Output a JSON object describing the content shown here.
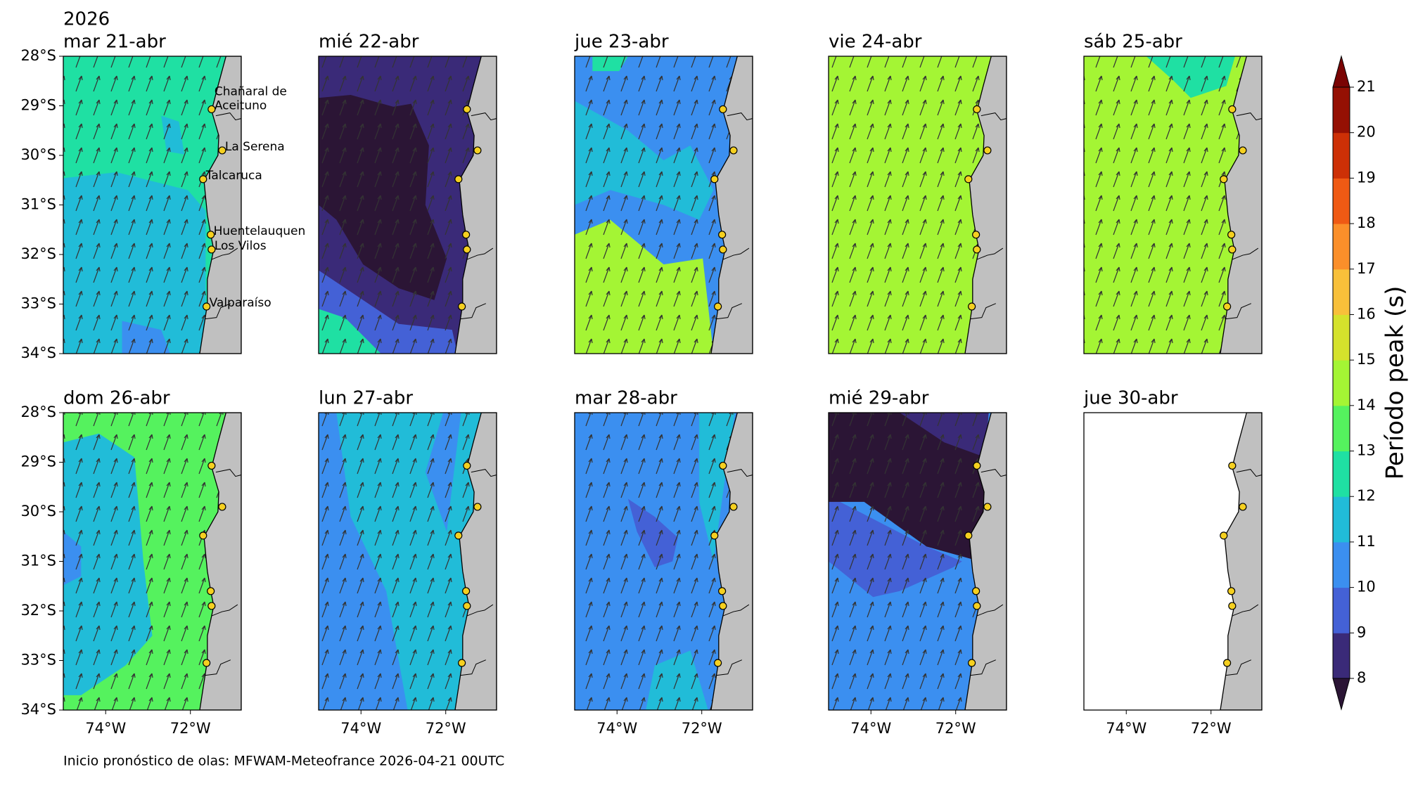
{
  "header": {
    "year": "2026"
  },
  "panels": [
    {
      "title": "mar 21-abr"
    },
    {
      "title": "mié 22-abr"
    },
    {
      "title": "jue 23-abr"
    },
    {
      "title": "vie 24-abr"
    },
    {
      "title": "sáb 25-abr"
    },
    {
      "title": "dom 26-abr"
    },
    {
      "title": "lun 27-abr"
    },
    {
      "title": "mar 28-abr"
    },
    {
      "title": "mié 29-abr"
    },
    {
      "title": "jue 30-abr"
    }
  ],
  "map": {
    "xlim": [
      -75,
      -70.8
    ],
    "ylim": [
      28,
      34
    ],
    "xticks": [
      {
        "value": -74,
        "label": "74°W"
      },
      {
        "value": -72,
        "label": "72°W"
      }
    ],
    "yticks": [
      {
        "value": 28,
        "label": "28°S"
      },
      {
        "value": 29,
        "label": "29°S"
      },
      {
        "value": 30,
        "label": "30°S"
      },
      {
        "value": 31,
        "label": "31°S"
      },
      {
        "value": 32,
        "label": "32°S"
      },
      {
        "value": 33,
        "label": "33°S"
      },
      {
        "value": 34,
        "label": "34°S"
      }
    ],
    "cities": [
      {
        "lines": [
          "Chañaral de",
          "Aceituno"
        ],
        "lon": -71.5,
        "lat": 29.07
      },
      {
        "lines": [
          "La Serena"
        ],
        "lon": -71.25,
        "lat": 29.9
      },
      {
        "lines": [
          "Talcaruca"
        ],
        "lon": -71.7,
        "lat": 30.48
      },
      {
        "lines": [
          "Huentelauquen"
        ],
        "lon": -71.52,
        "lat": 31.6
      },
      {
        "lines": [
          "Los Vilos"
        ],
        "lon": -71.5,
        "lat": 31.9
      },
      {
        "lines": [
          "Valparaíso"
        ],
        "lon": -71.62,
        "lat": 33.05
      }
    ]
  },
  "colorbar": {
    "label": "Período peak (s)",
    "ticks": [
      8,
      9,
      10,
      11,
      12,
      13,
      14,
      15,
      16,
      17,
      18,
      19,
      20,
      21
    ],
    "colors": [
      "#3a2a78",
      "#4461d6",
      "#3b8ff0",
      "#21bcd8",
      "#1fe0a3",
      "#55f25e",
      "#a4f534",
      "#d5e22c",
      "#f8c03a",
      "#fb8f2a",
      "#ef5a14",
      "#cd3006",
      "#951003"
    ],
    "under": "#2b1535",
    "over": "#7a0403"
  },
  "footer": "Inicio pronóstico de olas: MFWAM-Meteofrance 2026-04-21 00UTC"
}
